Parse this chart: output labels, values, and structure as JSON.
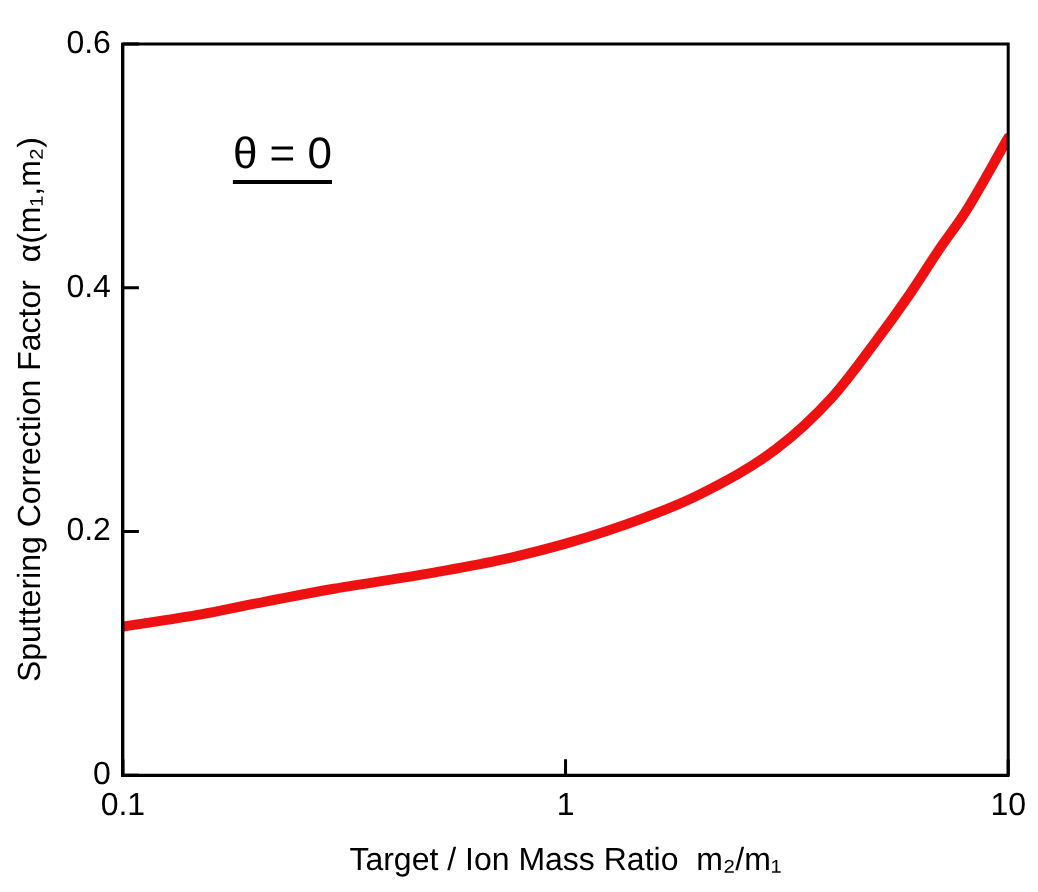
{
  "chart_data": {
    "type": "line",
    "xlabel": "Target / Ion Mass Ratio  m₂/m₁",
    "ylabel": "Sputtering Correction Factor  α(m₁,m₂)",
    "x": [
      0.1,
      0.15,
      0.2,
      0.3,
      0.5,
      0.7,
      1,
      1.5,
      2,
      3,
      4,
      5,
      6,
      7,
      8,
      10
    ],
    "series": [
      {
        "color": "#ee1111",
        "values": [
          0.122,
          0.132,
          0.141,
          0.153,
          0.166,
          0.176,
          0.19,
          0.211,
          0.23,
          0.268,
          0.31,
          0.355,
          0.395,
          0.432,
          0.462,
          0.523
        ]
      }
    ],
    "log": "x",
    "xlim": [
      0.1,
      10
    ],
    "xticks": [
      0.1,
      1,
      10
    ],
    "ylim": [
      0,
      0.6
    ],
    "yticks": [
      0,
      0.2,
      0.4,
      0.6
    ],
    "grid": false,
    "legend": false,
    "marker": "none",
    "line_style": "solid",
    "annotations": [
      "θ = 0"
    ]
  }
}
